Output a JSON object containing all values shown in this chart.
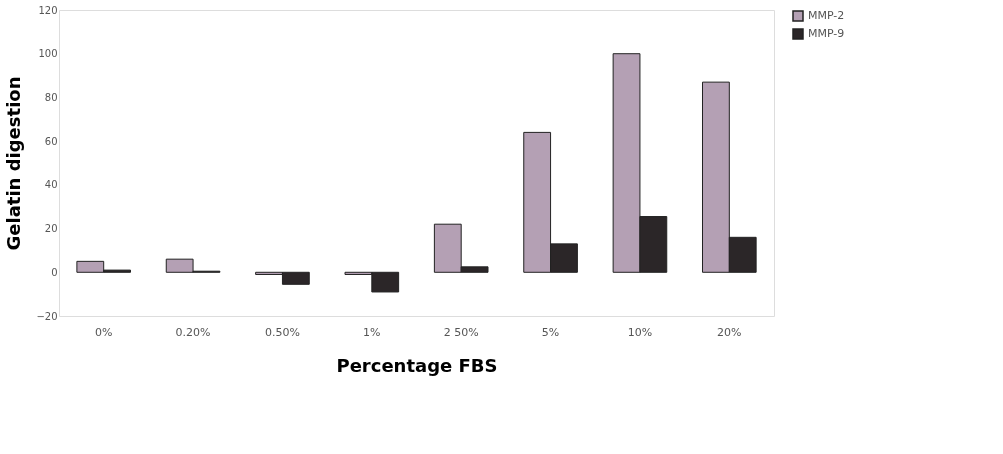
{
  "chart_data": {
    "type": "bar",
    "xlabel": "Percentage FBS",
    "ylabel": "Gelatin digestion",
    "categories": [
      "0%",
      "0.20%",
      "0.50%",
      "1%",
      "2 50%",
      "5%",
      "10%",
      "20%"
    ],
    "series": [
      {
        "name": "MMP-2",
        "color": "#b4a0b4",
        "values": [
          5,
          6,
          -1,
          -1,
          22,
          64,
          100,
          87
        ]
      },
      {
        "name": "MMP-9",
        "color": "#2b2628",
        "values": [
          1,
          0.5,
          -5.5,
          -9,
          2.5,
          13,
          25.5,
          16
        ]
      }
    ],
    "ylim": [
      -20,
      120
    ],
    "yticks": [
      -20,
      0,
      20,
      40,
      60,
      80,
      100,
      120
    ],
    "grid": false,
    "legend": "right"
  }
}
